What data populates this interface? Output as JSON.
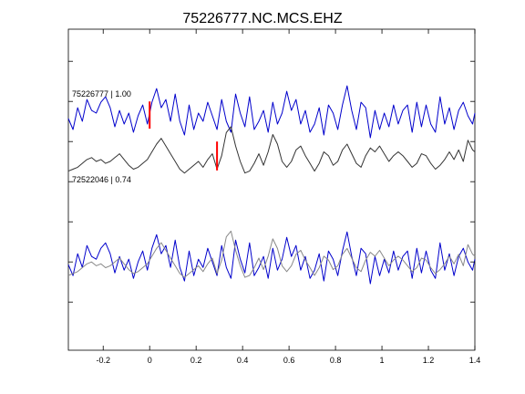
{
  "chart_data": {
    "type": "line",
    "title": "75226777.NC.MCS.EHZ",
    "xlabel": "",
    "ylabel": "",
    "xlim": [
      -0.35,
      1.4
    ],
    "xticks": [
      -0.2,
      0,
      0.2,
      0.4,
      0.6,
      0.8,
      1,
      1.2,
      1.4
    ],
    "xtick_labels": [
      "-0.2",
      "0",
      "0.2",
      "0.4",
      "0.6",
      "0.8",
      "1",
      "1.2",
      "1.4"
    ],
    "ylim": [
      -1,
      1
    ],
    "grid": false,
    "annotations": [
      {
        "text": "75226777 | 1.00"
      },
      {
        "text": "72522046 | 0.74"
      }
    ],
    "series": [
      {
        "color": "#0000cc",
        "baseline": 0.46,
        "amplitude": 0.17,
        "x": [
          -0.35,
          -0.33,
          -0.31,
          -0.29,
          -0.27,
          -0.25,
          -0.23,
          -0.21,
          -0.19,
          -0.17,
          -0.15,
          -0.13,
          -0.11,
          -0.09,
          -0.07,
          -0.05,
          -0.03,
          -0.01,
          0.01,
          0.03,
          0.05,
          0.07,
          0.09,
          0.11,
          0.13,
          0.15,
          0.17,
          0.19,
          0.21,
          0.23,
          0.25,
          0.27,
          0.29,
          0.31,
          0.33,
          0.35,
          0.37,
          0.39,
          0.41,
          0.43,
          0.45,
          0.47,
          0.49,
          0.51,
          0.53,
          0.55,
          0.57,
          0.59,
          0.61,
          0.63,
          0.65,
          0.67,
          0.69,
          0.71,
          0.73,
          0.75,
          0.77,
          0.79,
          0.81,
          0.83,
          0.85,
          0.87,
          0.89,
          0.91,
          0.93,
          0.95,
          0.97,
          0.99,
          1.01,
          1.03,
          1.05,
          1.07,
          1.09,
          1.11,
          1.13,
          1.15,
          1.17,
          1.19,
          1.21,
          1.23,
          1.25,
          1.27,
          1.29,
          1.31,
          1.33,
          1.35,
          1.37,
          1.39,
          1.4
        ],
        "y": [
          -0.1,
          -0.5,
          0.3,
          -0.2,
          0.6,
          0.2,
          0.1,
          0.5,
          0.7,
          0.3,
          -0.4,
          0.2,
          -0.3,
          0.1,
          -0.6,
          0.0,
          0.4,
          -0.3,
          0.5,
          1.0,
          0.3,
          0.6,
          -0.2,
          0.8,
          -0.2,
          -0.7,
          0.4,
          -0.5,
          0.1,
          -0.2,
          0.5,
          0.0,
          -0.5,
          0.6,
          -0.2,
          -0.6,
          0.8,
          0.1,
          -0.4,
          0.7,
          -0.5,
          -0.2,
          0.2,
          -0.6,
          0.5,
          -0.3,
          0.1,
          0.9,
          0.2,
          0.6,
          -0.3,
          0.2,
          -0.6,
          -0.3,
          0.3,
          -0.7,
          0.4,
          0.1,
          -0.5,
          0.4,
          1.1,
          0.2,
          -0.5,
          0.5,
          0.3,
          -0.8,
          0.2,
          -0.5,
          0.1,
          -0.4,
          0.4,
          -0.3,
          0.2,
          0.4,
          -0.6,
          0.5,
          -0.4,
          0.4,
          -0.3,
          -0.6,
          0.7,
          -0.3,
          0.3,
          -0.5,
          0.2,
          0.5,
          0.0,
          -0.3,
          0.1
        ]
      },
      {
        "color": "#333333",
        "baseline": 0.2,
        "amplitude": 0.12,
        "x": [
          -0.35,
          -0.33,
          -0.31,
          -0.29,
          -0.27,
          -0.25,
          -0.23,
          -0.21,
          -0.19,
          -0.17,
          -0.15,
          -0.13,
          -0.11,
          -0.09,
          -0.07,
          -0.05,
          -0.03,
          -0.01,
          0.01,
          0.03,
          0.05,
          0.07,
          0.09,
          0.11,
          0.13,
          0.15,
          0.17,
          0.19,
          0.21,
          0.23,
          0.25,
          0.27,
          0.29,
          0.31,
          0.33,
          0.35,
          0.37,
          0.39,
          0.41,
          0.43,
          0.45,
          0.47,
          0.49,
          0.51,
          0.53,
          0.55,
          0.57,
          0.59,
          0.61,
          0.63,
          0.65,
          0.67,
          0.69,
          0.71,
          0.73,
          0.75,
          0.77,
          0.79,
          0.81,
          0.83,
          0.85,
          0.87,
          0.89,
          0.91,
          0.93,
          0.95,
          0.97,
          0.99,
          1.01,
          1.03,
          1.05,
          1.07,
          1.09,
          1.11,
          1.13,
          1.15,
          1.17,
          1.19,
          1.21,
          1.23,
          1.25,
          1.27,
          1.29,
          1.31,
          1.33,
          1.35,
          1.37,
          1.39,
          1.4
        ],
        "y": [
          -0.7,
          -0.6,
          -0.5,
          -0.3,
          -0.1,
          0.0,
          -0.2,
          -0.1,
          -0.3,
          -0.2,
          0.0,
          0.2,
          -0.1,
          -0.4,
          -0.6,
          -0.5,
          -0.3,
          -0.1,
          0.3,
          0.7,
          1.0,
          0.6,
          0.2,
          -0.2,
          -0.6,
          -0.8,
          -0.6,
          -0.4,
          -0.2,
          -0.5,
          -0.1,
          0.2,
          -0.6,
          0.1,
          1.3,
          1.6,
          0.6,
          -0.2,
          -0.8,
          -0.7,
          -0.3,
          0.2,
          -0.4,
          0.3,
          1.2,
          0.7,
          -0.2,
          -0.5,
          -0.2,
          0.4,
          0.6,
          0.1,
          -0.3,
          -0.7,
          -0.3,
          0.3,
          0.1,
          -0.4,
          -0.2,
          0.4,
          0.7,
          0.2,
          -0.3,
          -0.5,
          0.1,
          0.5,
          0.3,
          0.6,
          0.2,
          -0.2,
          0.1,
          0.3,
          0.1,
          -0.2,
          -0.5,
          -0.3,
          0.2,
          0.1,
          -0.3,
          -0.6,
          -0.4,
          -0.1,
          0.3,
          -0.1,
          0.4,
          -0.2,
          0.9,
          0.4,
          0.3
        ]
      },
      {
        "color": "#0000cc",
        "baseline": -0.45,
        "amplitude": 0.17,
        "x": [
          -0.35,
          -0.33,
          -0.31,
          -0.29,
          -0.27,
          -0.25,
          -0.23,
          -0.21,
          -0.19,
          -0.17,
          -0.15,
          -0.13,
          -0.11,
          -0.09,
          -0.07,
          -0.05,
          -0.03,
          -0.01,
          0.01,
          0.03,
          0.05,
          0.07,
          0.09,
          0.11,
          0.13,
          0.15,
          0.17,
          0.19,
          0.21,
          0.23,
          0.25,
          0.27,
          0.29,
          0.31,
          0.33,
          0.35,
          0.37,
          0.39,
          0.41,
          0.43,
          0.45,
          0.47,
          0.49,
          0.51,
          0.53,
          0.55,
          0.57,
          0.59,
          0.61,
          0.63,
          0.65,
          0.67,
          0.69,
          0.71,
          0.73,
          0.75,
          0.77,
          0.79,
          0.81,
          0.83,
          0.85,
          0.87,
          0.89,
          0.91,
          0.93,
          0.95,
          0.97,
          0.99,
          1.01,
          1.03,
          1.05,
          1.07,
          1.09,
          1.11,
          1.13,
          1.15,
          1.17,
          1.19,
          1.21,
          1.23,
          1.25,
          1.27,
          1.29,
          1.31,
          1.33,
          1.35,
          1.37,
          1.39,
          1.4
        ],
        "y": [
          -0.1,
          -0.5,
          0.3,
          -0.2,
          0.6,
          0.2,
          0.1,
          0.5,
          0.7,
          0.3,
          -0.4,
          0.2,
          -0.3,
          0.1,
          -0.6,
          0.0,
          0.4,
          -0.3,
          0.5,
          1.0,
          0.3,
          0.6,
          -0.2,
          0.8,
          -0.2,
          -0.7,
          0.4,
          -0.5,
          0.1,
          -0.2,
          0.5,
          0.0,
          -0.5,
          0.6,
          -0.2,
          -0.6,
          0.8,
          0.1,
          -0.4,
          0.7,
          -0.5,
          -0.2,
          0.2,
          -0.6,
          0.5,
          -0.3,
          0.1,
          0.9,
          0.2,
          0.6,
          -0.3,
          0.2,
          -0.6,
          -0.3,
          0.3,
          -0.7,
          0.4,
          0.1,
          -0.5,
          0.4,
          1.1,
          0.2,
          -0.5,
          0.5,
          0.3,
          -0.8,
          0.2,
          -0.5,
          0.1,
          -0.4,
          0.4,
          -0.3,
          0.2,
          0.4,
          -0.6,
          0.5,
          -0.4,
          0.4,
          -0.3,
          -0.6,
          0.7,
          -0.3,
          0.3,
          -0.5,
          0.2,
          0.5,
          0.0,
          -0.3,
          0.1
        ]
      },
      {
        "color": "#888888",
        "baseline": -0.45,
        "amplitude": 0.12,
        "x": [
          -0.35,
          -0.33,
          -0.31,
          -0.29,
          -0.27,
          -0.25,
          -0.23,
          -0.21,
          -0.19,
          -0.17,
          -0.15,
          -0.13,
          -0.11,
          -0.09,
          -0.07,
          -0.05,
          -0.03,
          -0.01,
          0.01,
          0.03,
          0.05,
          0.07,
          0.09,
          0.11,
          0.13,
          0.15,
          0.17,
          0.19,
          0.21,
          0.23,
          0.25,
          0.27,
          0.29,
          0.31,
          0.33,
          0.35,
          0.37,
          0.39,
          0.41,
          0.43,
          0.45,
          0.47,
          0.49,
          0.51,
          0.53,
          0.55,
          0.57,
          0.59,
          0.61,
          0.63,
          0.65,
          0.67,
          0.69,
          0.71,
          0.73,
          0.75,
          0.77,
          0.79,
          0.81,
          0.83,
          0.85,
          0.87,
          0.89,
          0.91,
          0.93,
          0.95,
          0.97,
          0.99,
          1.01,
          1.03,
          1.05,
          1.07,
          1.09,
          1.11,
          1.13,
          1.15,
          1.17,
          1.19,
          1.21,
          1.23,
          1.25,
          1.27,
          1.29,
          1.31,
          1.33,
          1.35,
          1.37,
          1.39,
          1.4
        ],
        "y": [
          -0.7,
          -0.6,
          -0.5,
          -0.3,
          -0.1,
          0.0,
          -0.2,
          -0.1,
          -0.3,
          -0.2,
          0.0,
          0.2,
          -0.1,
          -0.4,
          -0.6,
          -0.5,
          -0.3,
          -0.1,
          0.3,
          0.7,
          1.0,
          0.6,
          0.2,
          -0.2,
          -0.6,
          -0.8,
          -0.6,
          -0.4,
          -0.2,
          -0.5,
          -0.1,
          0.2,
          -0.6,
          0.1,
          1.3,
          1.6,
          0.6,
          -0.2,
          -0.8,
          -0.7,
          -0.3,
          0.2,
          -0.4,
          0.3,
          1.2,
          0.7,
          -0.2,
          -0.5,
          -0.2,
          0.4,
          0.6,
          0.1,
          -0.3,
          -0.7,
          -0.3,
          0.3,
          0.1,
          -0.4,
          -0.2,
          0.4,
          0.7,
          0.2,
          -0.3,
          -0.5,
          0.1,
          0.5,
          0.3,
          0.6,
          0.2,
          -0.2,
          0.1,
          0.3,
          0.1,
          -0.2,
          -0.5,
          -0.3,
          0.2,
          0.1,
          -0.3,
          -0.6,
          -0.4,
          -0.1,
          0.3,
          -0.1,
          0.4,
          -0.2,
          0.9,
          0.4,
          0.3
        ]
      }
    ],
    "picks": [
      {
        "x": 0.0,
        "y_from": 0.38,
        "y_to": 0.55,
        "color": "#ff0000"
      },
      {
        "x": 0.29,
        "y_from": 0.12,
        "y_to": 0.3,
        "color": "#ff0000"
      }
    ],
    "left_ticks_y": [
      0.8,
      0.55,
      0.3,
      0.05,
      -0.2,
      -0.45,
      -0.7
    ]
  }
}
